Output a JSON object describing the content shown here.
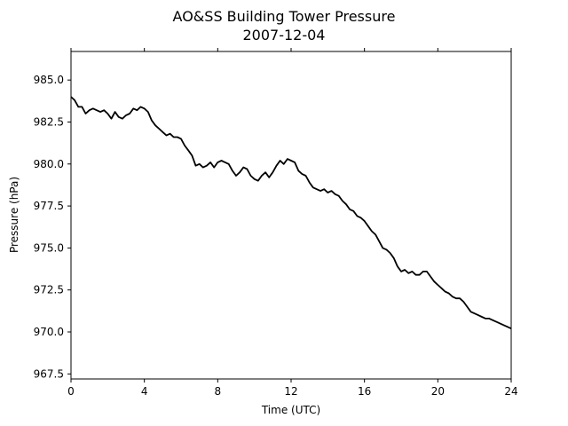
{
  "chart_data": {
    "type": "line",
    "title": "AO&SS Building Tower Pressure",
    "subtitle": "2007-12-04",
    "xlabel": "Time (UTC)",
    "ylabel": "Pressure (hPa)",
    "xlim": [
      0,
      24
    ],
    "ylim": [
      967.2,
      986.7
    ],
    "x_ticks": [
      0,
      4,
      8,
      12,
      16,
      20,
      24
    ],
    "y_ticks": [
      967.5,
      970.0,
      972.5,
      975.0,
      977.5,
      980.0,
      982.5,
      985.0
    ],
    "y_tick_labels": [
      "967.5",
      "970.0",
      "972.5",
      "975.0",
      "977.5",
      "980.0",
      "982.5",
      "985.0"
    ],
    "grid": false,
    "series": [
      {
        "color": "#000000",
        "x": [
          0,
          0.2,
          0.4,
          0.6,
          0.8,
          1.0,
          1.2,
          1.4,
          1.6,
          1.8,
          2.0,
          2.2,
          2.4,
          2.6,
          2.8,
          3.0,
          3.2,
          3.4,
          3.6,
          3.8,
          4.0,
          4.2,
          4.4,
          4.6,
          4.8,
          5.0,
          5.2,
          5.4,
          5.6,
          5.8,
          6.0,
          6.2,
          6.4,
          6.6,
          6.8,
          7.0,
          7.2,
          7.4,
          7.6,
          7.8,
          8.0,
          8.2,
          8.4,
          8.6,
          8.8,
          9.0,
          9.2,
          9.4,
          9.6,
          9.8,
          10.0,
          10.2,
          10.4,
          10.6,
          10.8,
          11.0,
          11.2,
          11.4,
          11.6,
          11.8,
          12.0,
          12.2,
          12.4,
          12.6,
          12.8,
          13.0,
          13.2,
          13.4,
          13.6,
          13.8,
          14.0,
          14.2,
          14.4,
          14.6,
          14.8,
          15.0,
          15.2,
          15.4,
          15.6,
          15.8,
          16.0,
          16.2,
          16.4,
          16.6,
          16.8,
          17.0,
          17.2,
          17.4,
          17.6,
          17.8,
          18.0,
          18.2,
          18.4,
          18.6,
          18.8,
          19.0,
          19.2,
          19.4,
          19.6,
          19.8,
          20.0,
          20.2,
          20.4,
          20.6,
          20.8,
          21.0,
          21.2,
          21.4,
          21.6,
          21.8,
          22.0,
          22.2,
          22.4,
          22.6,
          22.8,
          23.0,
          23.2,
          23.4,
          23.6,
          23.8,
          24.0
        ],
        "y": [
          984.0,
          983.8,
          983.4,
          983.4,
          983.0,
          983.2,
          983.3,
          983.2,
          983.1,
          983.2,
          983.0,
          982.7,
          983.1,
          982.8,
          982.7,
          982.9,
          983.0,
          983.3,
          983.2,
          983.4,
          983.3,
          983.1,
          982.6,
          982.3,
          982.1,
          981.9,
          981.7,
          981.8,
          981.6,
          981.6,
          981.5,
          981.1,
          980.8,
          980.5,
          979.9,
          980.0,
          979.8,
          979.9,
          980.1,
          979.8,
          980.1,
          980.2,
          980.1,
          980.0,
          979.6,
          979.3,
          979.5,
          979.8,
          979.7,
          979.3,
          979.1,
          979.0,
          979.3,
          979.5,
          979.2,
          979.5,
          979.9,
          980.2,
          980.0,
          980.3,
          980.2,
          980.1,
          979.6,
          979.4,
          979.3,
          978.9,
          978.6,
          978.5,
          978.4,
          978.5,
          978.3,
          978.4,
          978.2,
          978.1,
          977.8,
          977.6,
          977.3,
          977.2,
          976.9,
          976.8,
          976.6,
          976.3,
          976.0,
          975.8,
          975.4,
          975.0,
          974.9,
          974.7,
          974.4,
          973.9,
          973.6,
          973.7,
          973.5,
          973.6,
          973.4,
          973.4,
          973.6,
          973.6,
          973.3,
          973.0,
          972.8,
          972.6,
          972.4,
          972.3,
          972.1,
          972.0,
          972.0,
          971.8,
          971.5,
          971.2,
          971.1,
          971.0,
          970.9,
          970.8,
          970.8,
          970.7,
          970.6,
          970.5,
          970.4,
          970.3,
          970.2
        ]
      }
    ]
  }
}
